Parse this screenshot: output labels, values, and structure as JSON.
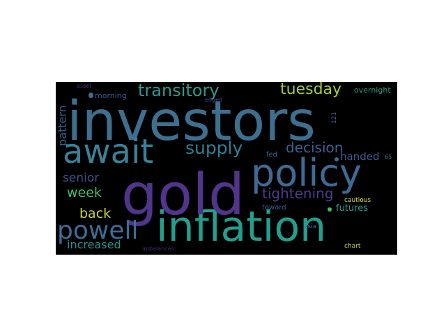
{
  "wordcloud": {
    "words": [
      {
        "key": "investors",
        "text": "investors",
        "color": "#3e6f8f"
      },
      {
        "key": "inflation",
        "text": "inflation",
        "color": "#239f8e"
      },
      {
        "key": "gold",
        "text": "gold",
        "color": "#51358a"
      },
      {
        "key": "await",
        "text": "await",
        "color": "#3b8198"
      },
      {
        "key": "policy",
        "text": "policy",
        "color": "#3d6b96"
      },
      {
        "key": "powell",
        "text": "powell",
        "color": "#3c6e97"
      },
      {
        "key": "transitory",
        "text": "transitory",
        "color": "#2e9a91"
      },
      {
        "key": "supply",
        "text": "supply",
        "color": "#2f7f94"
      },
      {
        "key": "decision",
        "text": "decision",
        "color": "#3e5f94"
      },
      {
        "key": "tuesday",
        "text": "tuesday",
        "color": "#a6cc3a"
      },
      {
        "key": "tightening",
        "text": "tightening",
        "color": "#4b3c8e"
      },
      {
        "key": "senior",
        "text": "senior",
        "color": "#3f4f89"
      },
      {
        "key": "week",
        "text": "week",
        "color": "#3fbc6c"
      },
      {
        "key": "back",
        "text": "back",
        "color": "#c6d43a"
      },
      {
        "key": "increased",
        "text": "increased",
        "color": "#2c8e8d"
      },
      {
        "key": "handed",
        "text": "handed",
        "color": "#3d5c95"
      },
      {
        "key": "futures",
        "text": "futures",
        "color": "#2a9a8c"
      },
      {
        "key": "pattern",
        "text": "pattern",
        "color": "#36648f"
      },
      {
        "key": "overnight",
        "text": "overnight",
        "color": "#2f9f86"
      },
      {
        "key": "morning",
        "text": "morning",
        "color": "#3e5b93"
      },
      {
        "key": "asset",
        "text": "asset",
        "color": "#4b2f7f"
      },
      {
        "key": "edged",
        "text": "edged",
        "color": "#3e4b8f"
      },
      {
        "key": "fed",
        "text": "fed",
        "color": "#3a6d95"
      },
      {
        "key": "toward",
        "text": "toward",
        "color": "#3a5f94"
      },
      {
        "key": "cautious",
        "text": "cautious",
        "color": "#dae24a"
      },
      {
        "key": "imbalances",
        "text": "imbalances",
        "color": "#482a76"
      },
      {
        "key": "chart",
        "text": "chart",
        "color": "#c9d545"
      },
      {
        "key": "asia",
        "text": "asia",
        "color": "#3478a4"
      },
      {
        "key": "num121",
        "text": "121",
        "color": "#3a5d94"
      },
      {
        "key": "num65",
        "text": "65",
        "color": "#2a8a8a"
      }
    ],
    "dots": [
      {
        "key": "dot-1",
        "color": "#3e6f8f"
      },
      {
        "key": "dot-2",
        "color": "#3b6b97"
      },
      {
        "key": "dot-3",
        "color": "#3fbc6c"
      }
    ]
  }
}
